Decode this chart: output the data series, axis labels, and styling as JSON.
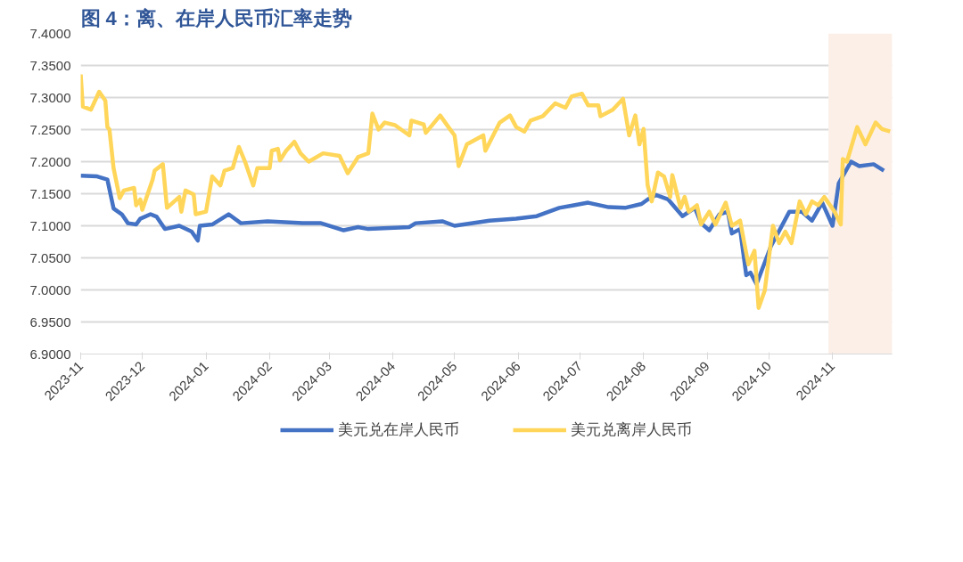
{
  "chart_data": {
    "type": "line",
    "title": "图 4：离、在岸人民币汇率走势",
    "xlim": [
      "2023-11-01",
      "2024-11-30"
    ],
    "xticks": [
      "2023-11",
      "2023-12",
      "2024-01",
      "2024-02",
      "2024-03",
      "2024-04",
      "2024-05",
      "2024-06",
      "2024-07",
      "2024-08",
      "2024-09",
      "2024-10",
      "2024-11"
    ],
    "ylim": [
      6.9,
      7.4
    ],
    "yticks": [
      {
        "value": 6.9,
        "label": "6.9000"
      },
      {
        "value": 6.95,
        "label": "6.9500"
      },
      {
        "value": 7.0,
        "label": "7.0000"
      },
      {
        "value": 7.05,
        "label": "7.0500"
      },
      {
        "value": 7.1,
        "label": "7.1000"
      },
      {
        "value": 7.15,
        "label": "7.1500"
      },
      {
        "value": 7.2,
        "label": "7.2000"
      },
      {
        "value": 7.25,
        "label": "7.2500"
      },
      {
        "value": 7.3,
        "label": "7.3000"
      },
      {
        "value": 7.35,
        "label": "7.3500"
      },
      {
        "value": 7.4,
        "label": "7.4000"
      }
    ],
    "grid": "y",
    "legend": "bottom",
    "line_style": "solid",
    "bands": [
      {
        "axis": "x",
        "from": "2024-10-30",
        "to": "2024-11-30",
        "color": "#fcefe8"
      }
    ],
    "series": [
      {
        "name": "美元兑在岸人民币",
        "color": "#4472c4",
        "x": [
          "2023-11-01",
          "2023-11-09",
          "2023-11-14",
          "2023-11-17",
          "2023-11-21",
          "2023-11-24",
          "2023-11-28",
          "2023-11-30",
          "2023-12-05",
          "2023-12-08",
          "2023-12-12",
          "2023-12-19",
          "2023-12-25",
          "2023-12-28",
          "2023-12-29",
          "2024-01-04",
          "2024-01-12",
          "2024-01-18",
          "2024-01-31",
          "2024-02-17",
          "2024-02-26",
          "2024-03-08",
          "2024-03-15",
          "2024-03-20",
          "2024-04-09",
          "2024-04-12",
          "2024-04-25",
          "2024-05-01",
          "2024-05-18",
          "2024-05-31",
          "2024-06-10",
          "2024-06-21",
          "2024-06-28",
          "2024-07-05",
          "2024-07-15",
          "2024-07-23",
          "2024-07-31",
          "2024-08-03",
          "2024-08-07",
          "2024-08-13",
          "2024-08-20",
          "2024-08-26",
          "2024-08-29",
          "2024-09-02",
          "2024-09-07",
          "2024-09-11",
          "2024-09-13",
          "2024-09-17",
          "2024-09-20",
          "2024-09-22",
          "2024-09-25",
          "2024-10-02",
          "2024-10-11",
          "2024-10-17",
          "2024-10-22",
          "2024-10-27",
          "2024-11-01",
          "2024-11-04",
          "2024-11-10",
          "2024-11-14",
          "2024-11-21",
          "2024-11-26"
        ],
        "values": [
          7.178,
          7.177,
          7.172,
          7.127,
          7.118,
          7.104,
          7.102,
          7.111,
          7.118,
          7.114,
          7.095,
          7.1,
          7.091,
          7.077,
          7.1,
          7.102,
          7.118,
          7.104,
          7.107,
          7.104,
          7.104,
          7.093,
          7.098,
          7.095,
          7.098,
          7.104,
          7.107,
          7.1,
          7.108,
          7.111,
          7.115,
          7.128,
          7.132,
          7.136,
          7.129,
          7.128,
          7.134,
          7.141,
          7.148,
          7.141,
          7.115,
          7.128,
          7.104,
          7.093,
          7.118,
          7.122,
          7.088,
          7.095,
          7.023,
          7.027,
          7.009,
          7.068,
          7.122,
          7.122,
          7.108,
          7.136,
          7.1,
          7.166,
          7.2,
          7.193,
          7.196,
          7.186
        ]
      },
      {
        "name": "美元兑离岸人民币",
        "color": "#ffd659",
        "x": [
          "2023-11-01",
          "2023-11-02",
          "2023-11-06",
          "2023-11-10",
          "2023-11-13",
          "2023-11-14",
          "2023-11-15",
          "2023-11-17",
          "2023-11-20",
          "2023-11-22",
          "2023-11-27",
          "2023-11-28",
          "2023-11-30",
          "2023-12-01",
          "2023-12-06",
          "2023-12-07",
          "2023-12-11",
          "2023-12-13",
          "2023-12-19",
          "2023-12-20",
          "2023-12-22",
          "2023-12-26",
          "2023-12-27",
          "2024-01-01",
          "2024-01-04",
          "2024-01-08",
          "2024-01-10",
          "2024-01-14",
          "2024-01-17",
          "2024-01-20",
          "2024-01-24",
          "2024-01-26",
          "2024-02-01",
          "2024-02-02",
          "2024-02-05",
          "2024-02-06",
          "2024-02-09",
          "2024-02-13",
          "2024-02-16",
          "2024-02-20",
          "2024-02-27",
          "2024-03-06",
          "2024-03-10",
          "2024-03-15",
          "2024-03-20",
          "2024-03-22",
          "2024-03-25",
          "2024-03-28",
          "2024-04-02",
          "2024-04-09",
          "2024-04-10",
          "2024-04-16",
          "2024-04-17",
          "2024-04-24",
          "2024-04-28",
          "2024-05-01",
          "2024-05-03",
          "2024-05-07",
          "2024-05-15",
          "2024-05-16",
          "2024-05-23",
          "2024-05-28",
          "2024-05-31",
          "2024-06-04",
          "2024-06-07",
          "2024-06-13",
          "2024-06-19",
          "2024-06-24",
          "2024-06-27",
          "2024-07-02",
          "2024-07-05",
          "2024-07-10",
          "2024-07-11",
          "2024-07-17",
          "2024-07-22",
          "2024-07-25",
          "2024-07-28",
          "2024-07-30",
          "2024-08-01",
          "2024-08-03",
          "2024-08-05",
          "2024-08-08",
          "2024-08-11",
          "2024-08-14",
          "2024-08-15",
          "2024-08-19",
          "2024-08-21",
          "2024-08-23",
          "2024-08-27",
          "2024-08-29",
          "2024-09-02",
          "2024-09-05",
          "2024-09-10",
          "2024-09-13",
          "2024-09-17",
          "2024-09-21",
          "2024-09-24",
          "2024-09-26",
          "2024-09-29",
          "2024-10-03",
          "2024-10-06",
          "2024-10-09",
          "2024-10-12",
          "2024-10-16",
          "2024-10-19",
          "2024-10-22",
          "2024-10-25",
          "2024-10-28",
          "2024-11-02",
          "2024-11-05",
          "2024-11-06",
          "2024-11-08",
          "2024-11-13",
          "2024-11-17",
          "2024-11-22",
          "2024-11-25",
          "2024-11-29"
        ],
        "values": [
          7.336,
          7.286,
          7.281,
          7.309,
          7.295,
          7.254,
          7.25,
          7.19,
          7.143,
          7.155,
          7.159,
          7.132,
          7.141,
          7.125,
          7.172,
          7.186,
          7.196,
          7.128,
          7.145,
          7.122,
          7.155,
          7.149,
          7.118,
          7.122,
          7.177,
          7.163,
          7.186,
          7.19,
          7.223,
          7.2,
          7.163,
          7.19,
          7.19,
          7.217,
          7.22,
          7.202,
          7.217,
          7.231,
          7.213,
          7.2,
          7.213,
          7.209,
          7.182,
          7.207,
          7.213,
          7.275,
          7.25,
          7.261,
          7.257,
          7.241,
          7.264,
          7.258,
          7.245,
          7.272,
          7.254,
          7.241,
          7.193,
          7.227,
          7.241,
          7.217,
          7.261,
          7.272,
          7.254,
          7.247,
          7.264,
          7.271,
          7.291,
          7.284,
          7.302,
          7.306,
          7.288,
          7.288,
          7.271,
          7.281,
          7.298,
          7.241,
          7.272,
          7.227,
          7.251,
          7.163,
          7.138,
          7.183,
          7.177,
          7.145,
          7.179,
          7.128,
          7.145,
          7.122,
          7.132,
          7.102,
          7.122,
          7.102,
          7.136,
          7.1,
          7.108,
          7.04,
          7.061,
          6.972,
          6.999,
          7.1,
          7.073,
          7.091,
          7.073,
          7.138,
          7.118,
          7.138,
          7.132,
          7.145,
          7.122,
          7.102,
          7.204,
          7.2,
          7.254,
          7.227,
          7.261,
          7.251,
          7.247
        ]
      }
    ]
  }
}
